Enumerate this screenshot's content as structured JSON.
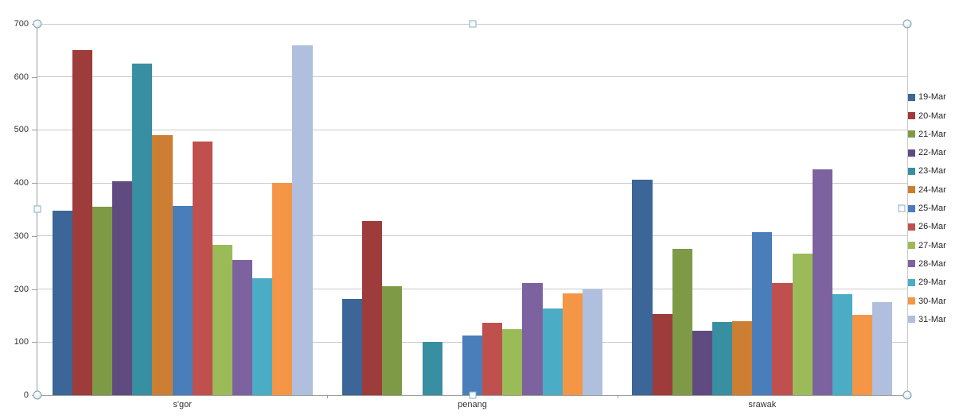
{
  "chart_data": {
    "type": "bar",
    "title": "",
    "categories": [
      "s'gor",
      "penang",
      "srawak"
    ],
    "series": [
      {
        "name": "19-Mar",
        "color": "#3c6598",
        "values": [
          348,
          182,
          406
        ]
      },
      {
        "name": "20-Mar",
        "color": "#9e3b3b",
        "values": [
          650,
          328,
          153
        ]
      },
      {
        "name": "21-Mar",
        "color": "#7e9a46",
        "values": [
          355,
          205,
          276
        ]
      },
      {
        "name": "22-Mar",
        "color": "#5f4b80",
        "values": [
          403,
          null,
          121
        ]
      },
      {
        "name": "23-Mar",
        "color": "#388fa2",
        "values": [
          625,
          100,
          138
        ]
      },
      {
        "name": "24-Mar",
        "color": "#cc7e33",
        "values": [
          490,
          null,
          140
        ]
      },
      {
        "name": "25-Mar",
        "color": "#4a7ebb",
        "values": [
          356,
          112,
          307
        ]
      },
      {
        "name": "26-Mar",
        "color": "#c0504d",
        "values": [
          478,
          136,
          211
        ]
      },
      {
        "name": "27-Mar",
        "color": "#9bbb59",
        "values": [
          283,
          125,
          267
        ]
      },
      {
        "name": "28-Mar",
        "color": "#7d62a0",
        "values": [
          255,
          212,
          426
        ]
      },
      {
        "name": "29-Mar",
        "color": "#4bacc6",
        "values": [
          220,
          164,
          191
        ]
      },
      {
        "name": "30-Mar",
        "color": "#f59546",
        "values": [
          400,
          192,
          152
        ]
      },
      {
        "name": "31-Mar",
        "color": "#b0bfdd",
        "values": [
          660,
          200,
          175
        ]
      }
    ],
    "ylim": [
      0,
      700
    ],
    "yticks": [
      0,
      100,
      200,
      300,
      400,
      500,
      600,
      700
    ],
    "xlabel": "",
    "ylabel": "",
    "grid": true,
    "legend_position": "right"
  },
  "ui": {
    "chart_selected": true,
    "selection_handles": [
      "top-left",
      "top-center",
      "top-right",
      "middle-left",
      "middle-right",
      "bottom-left",
      "bottom-center",
      "bottom-right"
    ]
  }
}
